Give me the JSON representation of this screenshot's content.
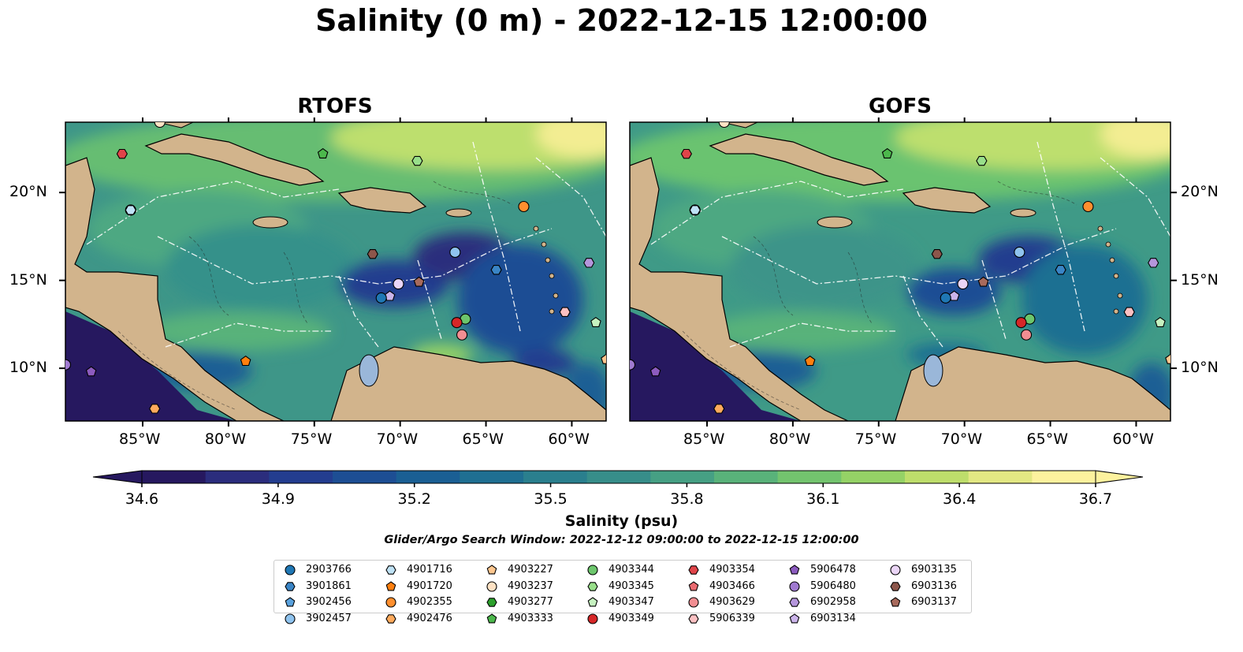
{
  "title": "Salinity (0 m) - 2022-12-15 12:00:00",
  "panels": [
    {
      "title": "RTOFS"
    },
    {
      "title": "GOFS"
    }
  ],
  "axes": {
    "x_ticks": [
      "85°W",
      "80°W",
      "75°W",
      "70°W",
      "65°W",
      "60°W"
    ],
    "y_ticks": [
      "20°N",
      "15°N",
      "10°N"
    ],
    "lon_range": [
      -89.5,
      -58.0
    ],
    "lat_range": [
      7.0,
      24.0
    ]
  },
  "colorbar": {
    "ticks": [
      "34.6",
      "34.9",
      "35.2",
      "35.5",
      "35.8",
      "36.1",
      "36.4",
      "36.7"
    ],
    "label": "Salinity (psu)",
    "range": [
      34.6,
      36.7
    ],
    "colors": [
      "#26185f",
      "#2b2d7d",
      "#233d8f",
      "#1d4e94",
      "#1a5f94",
      "#1f6f92",
      "#2a7f8e",
      "#378e8a",
      "#46a084",
      "#59b27a",
      "#73c46e",
      "#95d266",
      "#bede6b",
      "#e3e883",
      "#fdf29e"
    ]
  },
  "search_window": "Glider/Argo Search Window: 2022-12-12 09:00:00 to 2022-12-15 12:00:00",
  "colors": {
    "land": "#d2b48c",
    "lake": "#9ab7d9",
    "ocean_deep_low": "#2b2d7d"
  },
  "legend": [
    {
      "id": "2903766",
      "marker": "circle",
      "color": "#1f77b4"
    },
    {
      "id": "3901861",
      "marker": "hexagon",
      "color": "#3a85c6"
    },
    {
      "id": "3902456",
      "marker": "pentagon",
      "color": "#5aa2de"
    },
    {
      "id": "3902457",
      "marker": "circle",
      "color": "#8fc3ee"
    },
    {
      "id": "4901716",
      "marker": "hexagon",
      "color": "#bfe2f5"
    },
    {
      "id": "4901720",
      "marker": "pentagon",
      "color": "#ff7f0e"
    },
    {
      "id": "4902355",
      "marker": "circle",
      "color": "#ff8f2e"
    },
    {
      "id": "4902476",
      "marker": "hexagon",
      "color": "#ffaa5c"
    },
    {
      "id": "4903227",
      "marker": "pentagon",
      "color": "#ffc78f"
    },
    {
      "id": "4903237",
      "marker": "circle",
      "color": "#ffe2c4"
    },
    {
      "id": "4903277",
      "marker": "hexagon",
      "color": "#2ca02c"
    },
    {
      "id": "4903333",
      "marker": "pentagon",
      "color": "#4cb84c"
    },
    {
      "id": "4903344",
      "marker": "circle",
      "color": "#6cc66c"
    },
    {
      "id": "4903345",
      "marker": "hexagon",
      "color": "#98df8a"
    },
    {
      "id": "4903347",
      "marker": "pentagon",
      "color": "#c6f2c0"
    },
    {
      "id": "4903349",
      "marker": "circle",
      "color": "#d62728"
    },
    {
      "id": "4903354",
      "marker": "hexagon",
      "color": "#e04449"
    },
    {
      "id": "4903466",
      "marker": "pentagon",
      "color": "#ea6a70"
    },
    {
      "id": "4903629",
      "marker": "circle",
      "color": "#f28e92"
    },
    {
      "id": "5906339",
      "marker": "hexagon",
      "color": "#fbc0c2"
    },
    {
      "id": "5906478",
      "marker": "pentagon",
      "color": "#8c5bbf"
    },
    {
      "id": "5906480",
      "marker": "circle",
      "color": "#a07ad0"
    },
    {
      "id": "6902958",
      "marker": "hexagon",
      "color": "#b596dc"
    },
    {
      "id": "6903134",
      "marker": "pentagon",
      "color": "#cbb4ea"
    },
    {
      "id": "6903135",
      "marker": "circle",
      "color": "#ead5f7"
    },
    {
      "id": "6903136",
      "marker": "hexagon",
      "color": "#8c564b"
    },
    {
      "id": "6903137",
      "marker": "pentagon",
      "color": "#a86a5c"
    }
  ],
  "floats": [
    {
      "id": "2903766",
      "lon": -85.7,
      "lat": 19.0
    },
    {
      "id": "4901716",
      "lon": -85.7,
      "lat": 19.0
    },
    {
      "id": "4903354",
      "lon": -86.2,
      "lat": 22.2
    },
    {
      "id": "4903333",
      "lon": -74.5,
      "lat": 22.2
    },
    {
      "id": "4903345",
      "lon": -69.0,
      "lat": 21.8
    },
    {
      "id": "4902355",
      "lon": -62.8,
      "lat": 19.2
    },
    {
      "id": "6903136",
      "lon": -71.6,
      "lat": 16.5
    },
    {
      "id": "3902457",
      "lon": -66.8,
      "lat": 16.6
    },
    {
      "id": "3901861",
      "lon": -64.4,
      "lat": 15.6
    },
    {
      "id": "6902958",
      "lon": -59.0,
      "lat": 16.0
    },
    {
      "id": "6903135",
      "lon": -70.1,
      "lat": 14.8
    },
    {
      "id": "6903137",
      "lon": -68.9,
      "lat": 14.9
    },
    {
      "id": "6903134",
      "lon": -70.6,
      "lat": 14.1
    },
    {
      "id": "2903766",
      "lon": -71.1,
      "lat": 14.0
    },
    {
      "id": "4903344",
      "lon": -66.2,
      "lat": 12.8
    },
    {
      "id": "4903349",
      "lon": -66.7,
      "lat": 12.6
    },
    {
      "id": "4903629",
      "lon": -66.4,
      "lat": 11.9
    },
    {
      "id": "5906339",
      "lon": -60.4,
      "lat": 13.2
    },
    {
      "id": "4903347",
      "lon": -58.6,
      "lat": 12.6
    },
    {
      "id": "4901720",
      "lon": -79.0,
      "lat": 10.4
    },
    {
      "id": "4903227",
      "lon": -58.0,
      "lat": 10.5
    },
    {
      "id": "5906480",
      "lon": -89.5,
      "lat": 10.2
    },
    {
      "id": "5906478",
      "lon": -88.0,
      "lat": 9.8
    },
    {
      "id": "4902476",
      "lon": -84.3,
      "lat": 7.7
    },
    {
      "id": "4903237",
      "lon": -84.0,
      "lat": 24.0
    }
  ]
}
